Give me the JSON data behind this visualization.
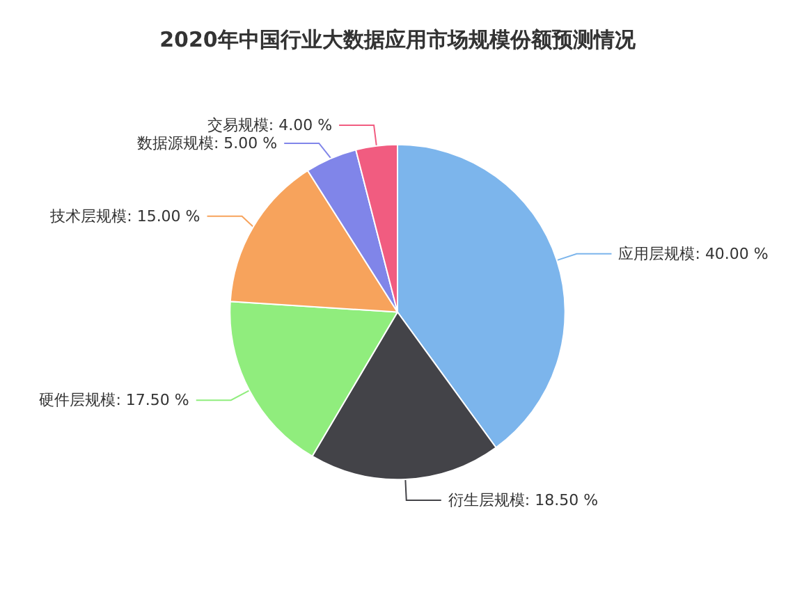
{
  "chart_data": {
    "type": "pie",
    "title": "2020年中国行业大数据应用市场规模份额预测情况",
    "categories": [
      "应用层规模",
      "衍生层规模",
      "硬件层规模",
      "技术层规模",
      "数据源规模",
      "交易规模"
    ],
    "values": [
      40,
      18.5,
      17.5,
      15,
      5,
      4
    ],
    "value_labels": [
      "40.00 %",
      "18.50 %",
      "17.50 %",
      "15.00 %",
      "5.00 %",
      "4.00 %"
    ],
    "colors": [
      "#7cb5ec",
      "#434348",
      "#90ed7d",
      "#f7a35c",
      "#8085e9",
      "#f15c80"
    ],
    "legend": false
  }
}
